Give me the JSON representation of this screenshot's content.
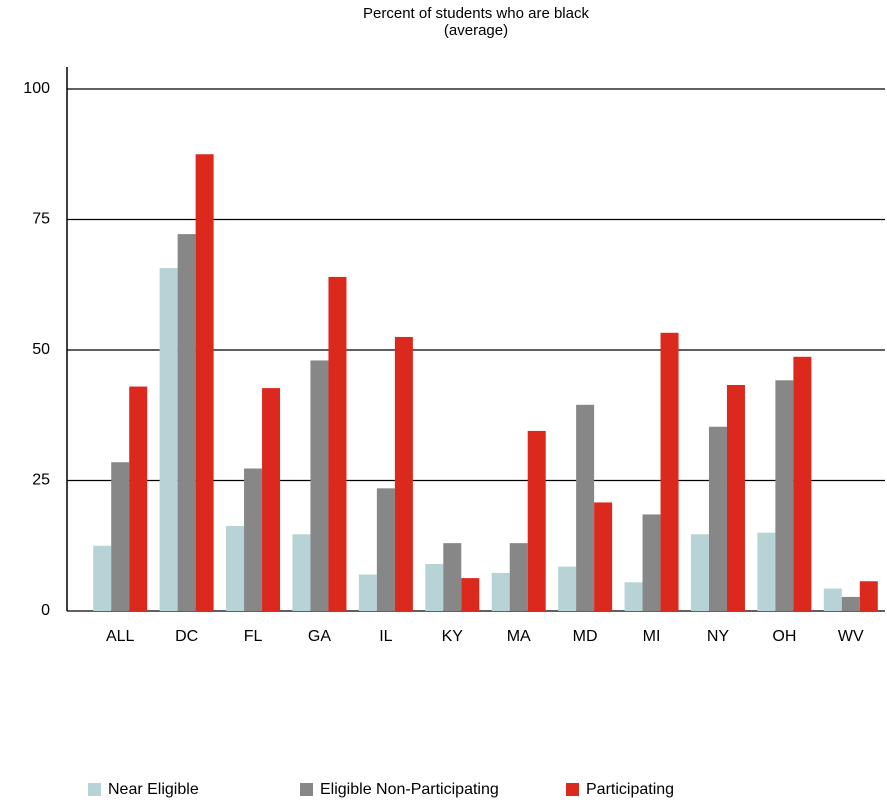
{
  "chart_data": {
    "type": "bar",
    "title": "Percent of students who are black",
    "subtitle": "(average)",
    "categories": [
      "ALL",
      "DC",
      "FL",
      "GA",
      "IL",
      "KY",
      "MA",
      "MD",
      "MI",
      "NY",
      "OH",
      "WV"
    ],
    "series": [
      {
        "name": "Near Eligible",
        "color": "#b8d3d6",
        "values": [
          12.5,
          65.7,
          16.3,
          14.7,
          7,
          9,
          7.3,
          8.5,
          5.5,
          14.7,
          15,
          4.3
        ]
      },
      {
        "name": "Eligible Non-Participating",
        "color": "#878787",
        "values": [
          28.5,
          72.2,
          27.3,
          48,
          23.5,
          13,
          13,
          39.5,
          18.5,
          35.3,
          44.2,
          2.7
        ]
      },
      {
        "name": "Participating",
        "color": "#dc291e",
        "values": [
          43,
          87.5,
          42.7,
          64,
          52.5,
          6.3,
          34.5,
          20.8,
          53.3,
          43.3,
          48.7,
          5.7
        ]
      }
    ],
    "ylim": [
      0,
      100
    ],
    "yticks": [
      0,
      25,
      50,
      75,
      100
    ],
    "grid": true
  }
}
